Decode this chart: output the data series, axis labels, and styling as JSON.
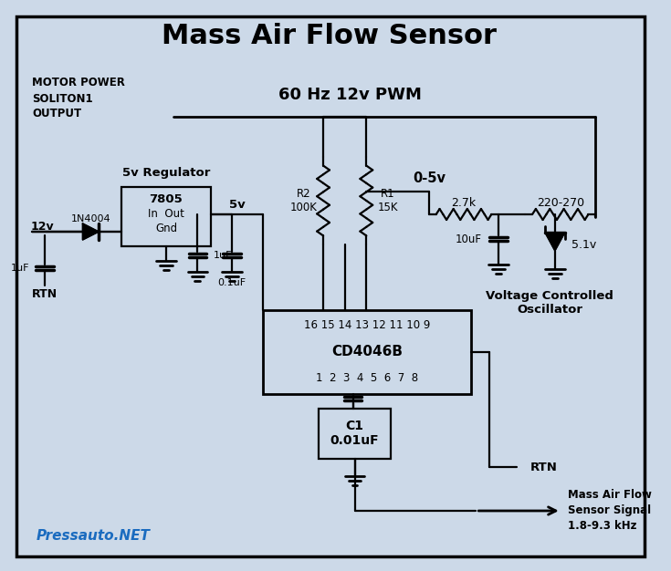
{
  "title": "Mass Air Flow Sensor",
  "background_color": "#ccd9e8",
  "border_color": "#000000",
  "line_color": "#000000",
  "text_color": "#000000",
  "watermark": "Pressauto.NET",
  "watermark_color": "#1a6bbf",
  "motor_power": "MOTOR POWER\nSOLITON1\nOUTPUT",
  "pwm": "60 Hz 12v PWM",
  "v5_reg": "5v Regulator",
  "diode_label": "1N4004",
  "v12": "12v",
  "cap1": "1uF",
  "rtn1": "RTN",
  "ic": "7805",
  "in_out": "In  Out",
  "gnd_label": "Gnd",
  "v5": "5v",
  "cap2": "1uF",
  "cap3": "0.1uF",
  "r2": "R2\n100K",
  "r1": "R1\n15K",
  "v05": "0-5v",
  "r_2k7": "2.7k",
  "r_220": "220-270",
  "cap4": "10uF",
  "zener": "5.1v",
  "cd4046": "CD4046B",
  "top_pins": "16 15 14 13 12 11 10 9",
  "bot_pins": "1  2  3  4  5  6  7  8",
  "c1_label": "C1\n0.01uF",
  "rtn2": "RTN",
  "maf_signal": "Mass Air Flow\nSensor Signal\n1.8-9.3 kHz",
  "vco": "Voltage Controlled\nOscillator"
}
